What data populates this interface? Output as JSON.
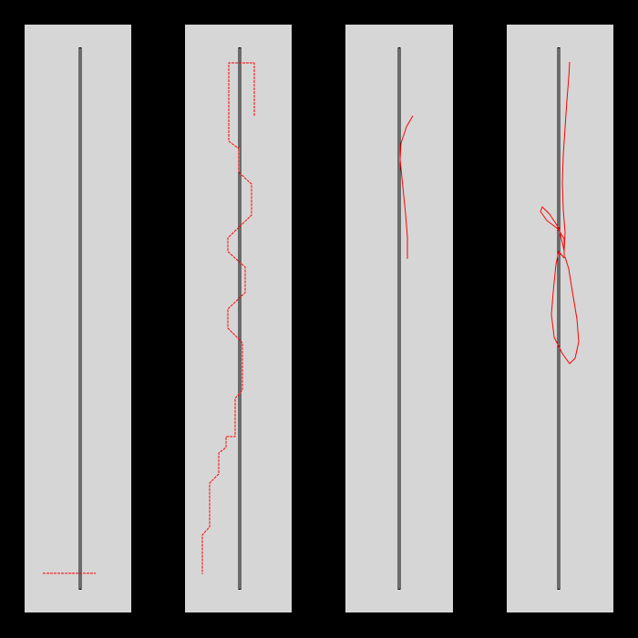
{
  "colors": {
    "background": "#000000",
    "panel": "#d6d6d6",
    "center_line_outer": "#000000",
    "center_line_inner": "#d6d6d6",
    "trace": "#ff0000"
  },
  "panels": [
    {
      "id": "panel-1",
      "trace_style": "dashed"
    },
    {
      "id": "panel-2",
      "trace_style": "dashed"
    },
    {
      "id": "panel-3",
      "trace_style": "solid"
    },
    {
      "id": "panel-4",
      "trace_style": "solid"
    }
  ]
}
